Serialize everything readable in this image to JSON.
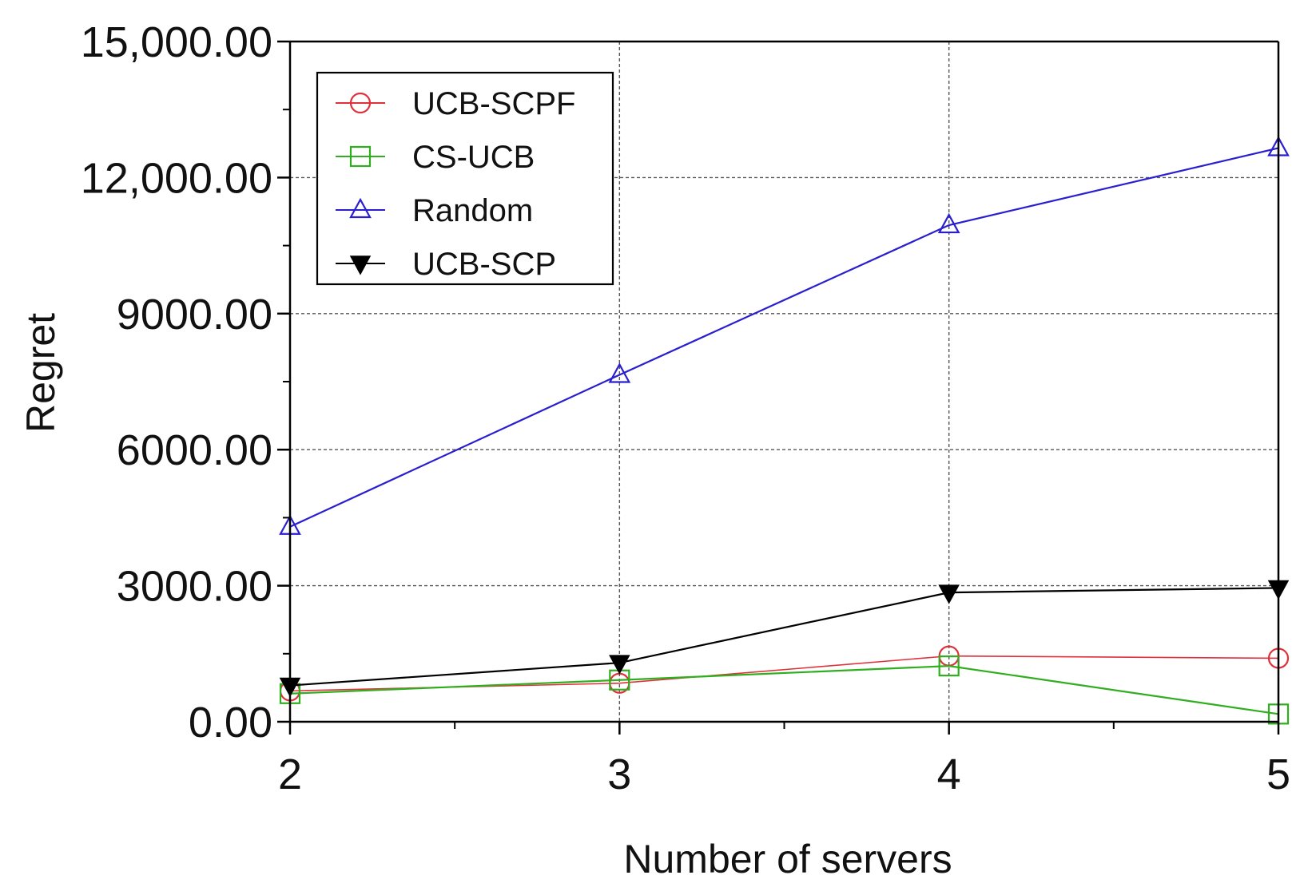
{
  "chart_data": {
    "type": "line",
    "title": "",
    "xlabel": "Number of servers",
    "ylabel": "Regret",
    "x": [
      2,
      3,
      4,
      5
    ],
    "xlim": [
      2,
      5
    ],
    "ylim": [
      0,
      15000
    ],
    "x_ticks": [
      2,
      3,
      4,
      5
    ],
    "x_tick_labels": [
      "2",
      "3",
      "4",
      "5"
    ],
    "x_minor_ticks": [
      2.5,
      3.5,
      4.5
    ],
    "y_ticks": [
      0,
      3000,
      6000,
      9000,
      12000,
      15000
    ],
    "y_tick_labels": [
      "0.00",
      "3000.00",
      "6000.00",
      "9000.00",
      "12,000.00",
      "15,000.00"
    ],
    "y_minor_ticks": [
      1500,
      4500,
      7500,
      10500,
      13500
    ],
    "grid": true,
    "legend_position": "top-left",
    "series": [
      {
        "name": "UCB-SCPF",
        "values": [
          680,
          850,
          1450,
          1400
        ],
        "color": "#e0303a",
        "marker": "circle-open"
      },
      {
        "name": "CS-UCB",
        "values": [
          620,
          920,
          1230,
          170
        ],
        "color": "#2fae1f",
        "marker": "square-open"
      },
      {
        "name": "Random",
        "values": [
          4300,
          7650,
          10950,
          12650
        ],
        "color": "#2a1fd0",
        "marker": "triangle-up-open"
      },
      {
        "name": "UCB-SCP",
        "values": [
          800,
          1300,
          2850,
          2950
        ],
        "color": "#000000",
        "marker": "triangle-down-filled"
      }
    ]
  }
}
